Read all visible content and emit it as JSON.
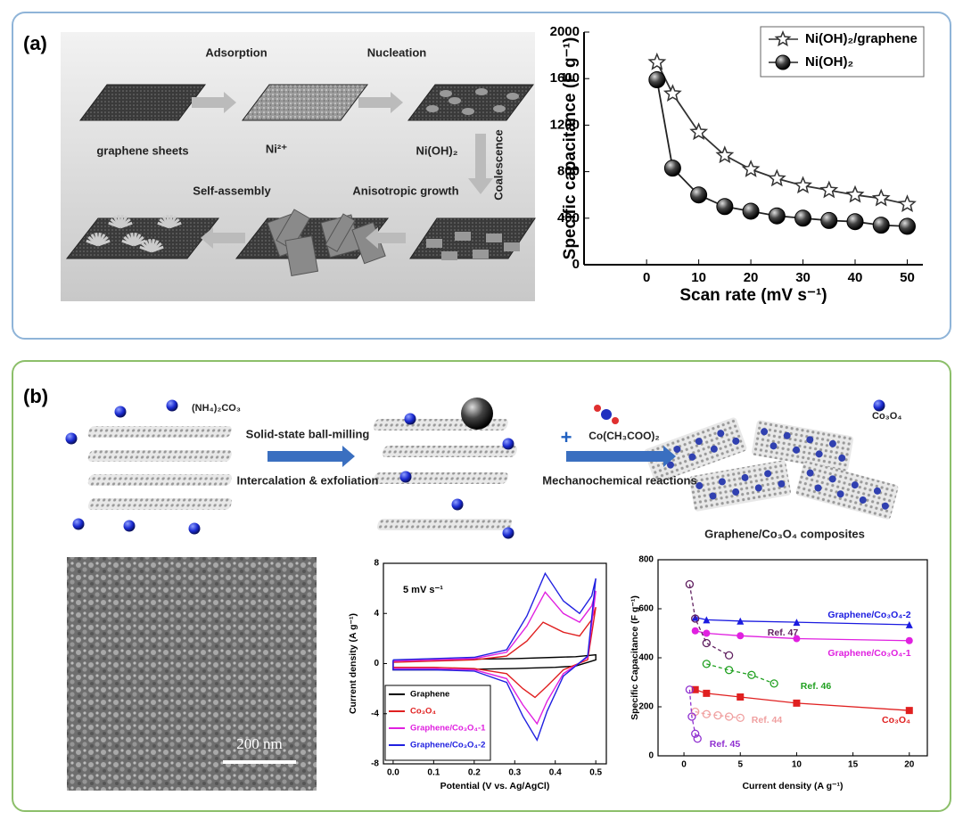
{
  "figure": {
    "panel_a": {
      "label": "(a)",
      "adsorption": "Adsorption",
      "nucleation": "Nucleation",
      "graphene": "graphene sheets",
      "ni": "Ni²⁺",
      "nioh": "Ni(OH)₂",
      "coalescence": "Coalescence",
      "self_assembly": "Self-assembly",
      "growth": "Anisotropic growth"
    },
    "panel_b": {
      "label": "(b)",
      "reagent": "(NH₄)₂CO₃",
      "step1": "Solid-state ball-milling",
      "step1b": "Intercalation & exfoliation",
      "plus": "+",
      "precursor": "Co(CH₃COO)₂",
      "step2": "Mechanochemical reactions",
      "product": "Co₃O₄",
      "composite": "Graphene/Co₃O₄ composites",
      "scale_bar": "200 nm"
    }
  },
  "chart_data": [
    {
      "type": "line",
      "xlabel": "Scan rate (mV s⁻¹)",
      "ylabel": "Specific capacitance (F g⁻¹)",
      "x": [
        2,
        5,
        10,
        15,
        20,
        25,
        30,
        35,
        40,
        45,
        50
      ],
      "xlim": [
        -12,
        53
      ],
      "xticks": [
        0,
        10,
        20,
        30,
        40,
        50
      ],
      "ylim": [
        0,
        2000
      ],
      "yticks": [
        0,
        400,
        800,
        1200,
        1600,
        2000
      ],
      "legend": "upper right",
      "series": [
        {
          "name": "Ni(OH)₂/graphene",
          "color": "#333333",
          "marker": "star",
          "values": [
            1740,
            1470,
            1140,
            940,
            820,
            740,
            680,
            640,
            600,
            570,
            520
          ]
        },
        {
          "name": "Ni(OH)₂",
          "color": "#222222",
          "marker": "sphere",
          "values": [
            1590,
            830,
            600,
            500,
            460,
            420,
            400,
            380,
            370,
            340,
            330
          ]
        }
      ]
    },
    {
      "type": "line",
      "xlabel": "Potential (V vs. Ag/AgCl)",
      "ylabel": "Current density (A g⁻¹)",
      "annotation": "5 mV s⁻¹",
      "xlim": [
        -0.024,
        0.526
      ],
      "xticks": [
        {
          "value": 0,
          "label": "0.0"
        },
        0.1,
        0.2,
        0.3,
        0.4,
        0.5
      ],
      "ylim": [
        -8,
        8
      ],
      "yticks": [
        -8,
        -4,
        0,
        4,
        8
      ],
      "legend": "lower left",
      "series": [
        {
          "name": "Graphene",
          "color": "#000000",
          "x": [
            0,
            0.1,
            0.2,
            0.3,
            0.4,
            0.45,
            0.5,
            0.5,
            0.45,
            0.4,
            0.3,
            0.2,
            0.1,
            0,
            0
          ],
          "values": [
            0.2,
            0.3,
            0.35,
            0.4,
            0.5,
            0.55,
            0.7,
            0.3,
            -0.2,
            -0.3,
            -0.4,
            -0.45,
            -0.5,
            -0.5,
            0.2
          ]
        },
        {
          "name": "Co₃O₄",
          "color": "#e02020",
          "x": [
            0,
            0.1,
            0.2,
            0.28,
            0.33,
            0.37,
            0.42,
            0.46,
            0.49,
            0.5,
            0.48,
            0.42,
            0.38,
            0.35,
            0.32,
            0.28,
            0.2,
            0.1,
            0,
            0
          ],
          "values": [
            0.1,
            0.2,
            0.3,
            0.6,
            1.8,
            3.3,
            2.5,
            2.2,
            3.5,
            4.5,
            0.3,
            -0.5,
            -1.8,
            -2.7,
            -2.0,
            -0.8,
            -0.4,
            -0.3,
            -0.3,
            0.1
          ]
        },
        {
          "name": "Graphene/Co₃O₄-1",
          "color": "#e020e0",
          "x": [
            0,
            0.1,
            0.2,
            0.28,
            0.33,
            0.375,
            0.42,
            0.46,
            0.49,
            0.5,
            0.48,
            0.42,
            0.38,
            0.355,
            0.32,
            0.28,
            0.2,
            0.1,
            0,
            0
          ],
          "values": [
            0.2,
            0.3,
            0.4,
            0.9,
            3.0,
            5.7,
            4.0,
            3.3,
            4.6,
            5.8,
            0.5,
            -0.8,
            -3.0,
            -4.8,
            -3.3,
            -1.2,
            -0.5,
            -0.4,
            -0.4,
            0.2
          ]
        },
        {
          "name": "Graphene/Co₃O₄-2",
          "color": "#2020e0",
          "x": [
            0,
            0.1,
            0.2,
            0.28,
            0.33,
            0.375,
            0.42,
            0.46,
            0.49,
            0.5,
            0.48,
            0.42,
            0.38,
            0.355,
            0.32,
            0.28,
            0.2,
            0.1,
            0,
            0
          ],
          "values": [
            0.3,
            0.4,
            0.5,
            1.1,
            3.8,
            7.2,
            5.0,
            4.0,
            5.4,
            6.8,
            0.6,
            -1.0,
            -3.8,
            -6.1,
            -4.2,
            -1.5,
            -0.6,
            -0.5,
            -0.5,
            0.3
          ]
        }
      ]
    },
    {
      "type": "line",
      "xlabel": "Current density (A g⁻¹)",
      "ylabel": "Specific Capacitance (F g⁻¹)",
      "xlim": [
        -2.3,
        21.6
      ],
      "xticks": [
        0,
        5,
        10,
        15,
        20
      ],
      "ylim": [
        0,
        800
      ],
      "yticks": [
        0,
        200,
        400,
        600,
        800
      ],
      "series": [
        {
          "name": "Graphene/Co₃O₄-2",
          "color": "#1a1ae0",
          "marker": "triangle",
          "x": [
            1,
            2,
            5,
            10,
            20
          ],
          "values": [
            565,
            555,
            550,
            545,
            535
          ]
        },
        {
          "name": "Graphene/Co₃O₄-1",
          "color": "#e020e0",
          "marker": "circle",
          "x": [
            1,
            2,
            5,
            10,
            20
          ],
          "values": [
            510,
            500,
            490,
            478,
            470
          ]
        },
        {
          "name": "Ref. 47",
          "color": "#602060",
          "marker": "xcircle",
          "dashed": true,
          "x": [
            0.5,
            1,
            2,
            4
          ],
          "values": [
            700,
            560,
            460,
            410
          ]
        },
        {
          "name": "Ref. 46",
          "color": "#20a020",
          "marker": "xcircle",
          "dashed": true,
          "x": [
            2,
            4,
            6,
            8
          ],
          "values": [
            375,
            350,
            330,
            295
          ]
        },
        {
          "name": "Co₃O₄",
          "color": "#e02020",
          "marker": "square",
          "x": [
            1,
            2,
            5,
            10,
            20
          ],
          "values": [
            270,
            255,
            240,
            215,
            185
          ]
        },
        {
          "name": "Ref. 44",
          "color": "#f0a0a0",
          "marker": "xcircle",
          "dashed": true,
          "x": [
            1,
            2,
            3,
            4,
            5
          ],
          "values": [
            180,
            170,
            165,
            160,
            155
          ]
        },
        {
          "name": "Ref. 45",
          "color": "#9030d0",
          "marker": "xcircle",
          "dashed": true,
          "x": [
            0.5,
            0.7,
            1,
            1.2
          ],
          "values": [
            270,
            160,
            90,
            70
          ]
        }
      ]
    }
  ]
}
